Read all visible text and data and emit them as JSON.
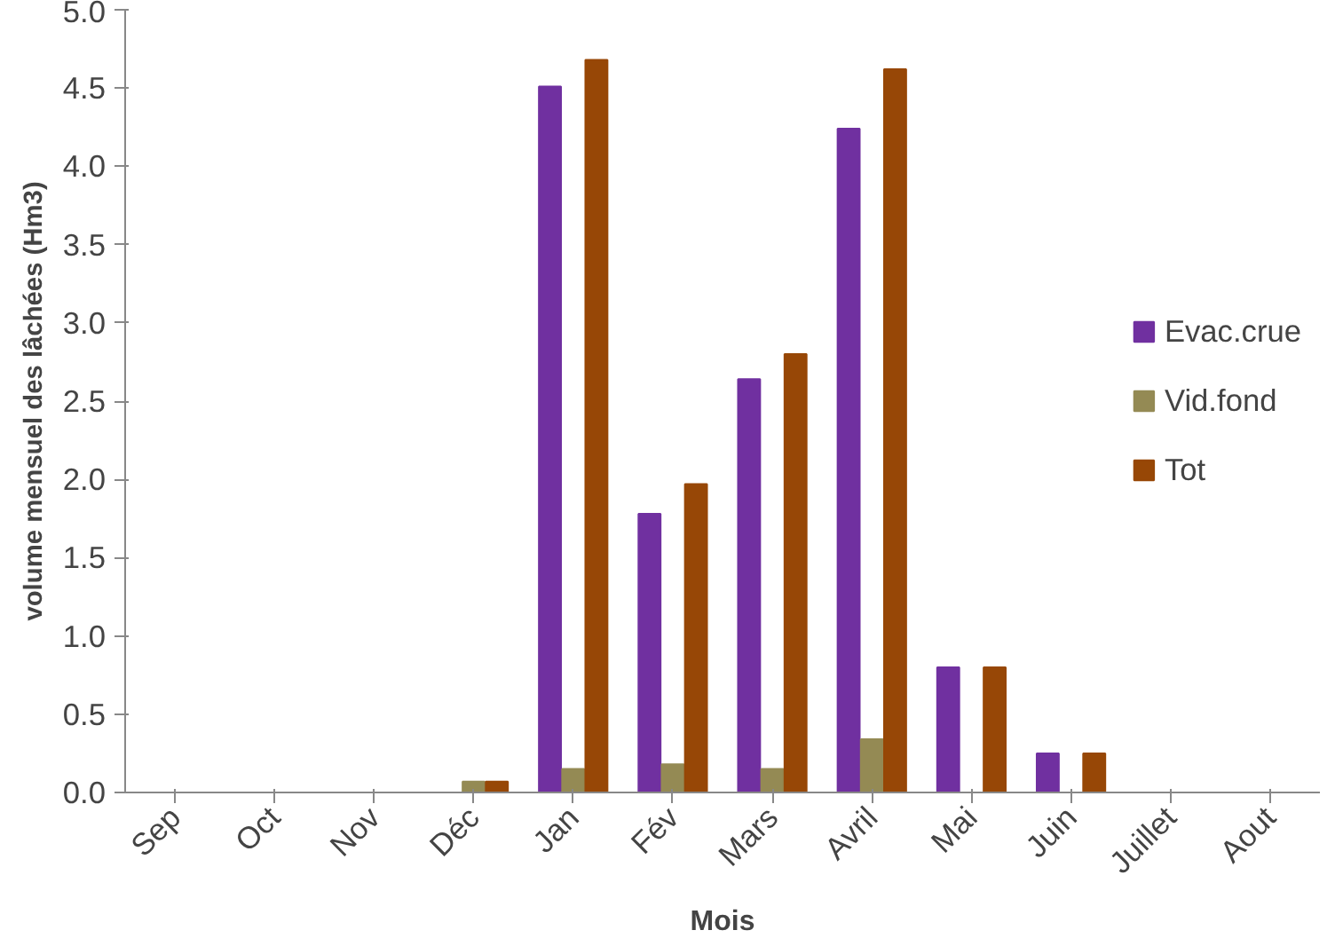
{
  "chart_data": {
    "type": "bar",
    "xlabel": "Mois",
    "ylabel": "volume mensuel des lâchées (Hm3)",
    "categories": [
      "Sep",
      "Oct",
      "Nov",
      "Déc",
      "Jan",
      "Fév",
      "Mars",
      "Avril",
      "Mai",
      "Juin",
      "Juillet",
      "Aout"
    ],
    "series": [
      {
        "name": "Evac.crue",
        "color": "#7030a0",
        "values": [
          0,
          0,
          0,
          0,
          4.51,
          1.78,
          2.64,
          4.24,
          0.8,
          0.25,
          0,
          0
        ]
      },
      {
        "name": "Vid.fond",
        "color": "#948a54",
        "values": [
          0,
          0,
          0,
          0.07,
          0.15,
          0.18,
          0.15,
          0.34,
          0,
          0,
          0,
          0
        ]
      },
      {
        "name": "Tot",
        "color": "#974706",
        "values": [
          0,
          0,
          0,
          0.07,
          4.68,
          1.97,
          2.8,
          4.62,
          0.8,
          0.25,
          0,
          0
        ]
      }
    ],
    "ylim": [
      0,
      5
    ],
    "yticks": [
      {
        "value": 0,
        "label": "0.0"
      },
      {
        "value": 0.5,
        "label": "0.5"
      },
      {
        "value": 1,
        "label": "1.0"
      },
      {
        "value": 1.5,
        "label": "1.5"
      },
      {
        "value": 2,
        "label": "2.0"
      },
      {
        "value": 2.5,
        "label": "2.5"
      },
      {
        "value": 3,
        "label": "3.0"
      },
      {
        "value": 3.5,
        "label": "3.5"
      },
      {
        "value": 4,
        "label": "4.0"
      },
      {
        "value": 4.5,
        "label": "4.5"
      },
      {
        "value": 5,
        "label": "5.0"
      }
    ],
    "grid": false,
    "legend": "right"
  }
}
